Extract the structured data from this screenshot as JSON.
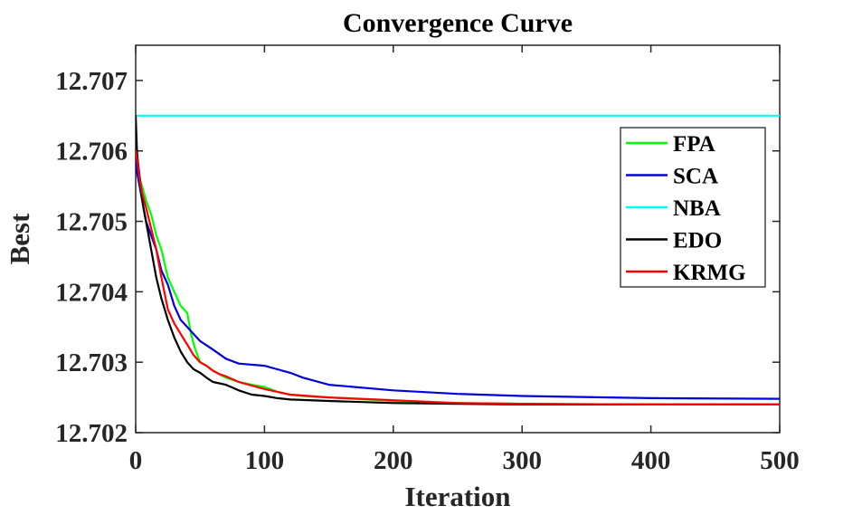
{
  "chart_data": {
    "type": "line",
    "title": "Convergence Curve",
    "xlabel": "Iteration",
    "ylabel": "Best",
    "xlim": [
      0,
      500
    ],
    "ylim": [
      12.702,
      12.7075
    ],
    "xticks": [
      0,
      100,
      200,
      300,
      400,
      500
    ],
    "xtick_labels": [
      "0",
      "100",
      "200",
      "300",
      "400",
      "500"
    ],
    "yticks": [
      12.702,
      12.703,
      12.704,
      12.705,
      12.706,
      12.707
    ],
    "ytick_labels": [
      "12.702",
      "12.703",
      "12.704",
      "12.705",
      "12.706",
      "12.707"
    ],
    "grid": false,
    "legend_position": "upper-right",
    "series": [
      {
        "name": "FPA",
        "color": "#00ff00",
        "x": [
          0,
          1,
          3,
          5,
          8,
          12,
          16,
          20,
          25,
          30,
          35,
          40,
          43,
          46,
          50,
          55,
          60,
          70,
          80,
          90,
          100,
          110,
          120,
          130,
          150,
          200,
          250,
          300,
          400,
          500
        ],
        "y": [
          12.706,
          12.7058,
          12.7056,
          12.7055,
          12.7053,
          12.7051,
          12.7048,
          12.7046,
          12.7042,
          12.704,
          12.7038,
          12.7037,
          12.7034,
          12.7032,
          12.703,
          12.70295,
          12.70288,
          12.70278,
          12.70272,
          12.70268,
          12.70265,
          12.70258,
          12.70254,
          12.70252,
          12.7025,
          12.70245,
          12.70242,
          12.70241,
          12.7024,
          12.7024
        ]
      },
      {
        "name": "SCA",
        "color": "#0000dd",
        "x": [
          0,
          1,
          3,
          5,
          8,
          12,
          16,
          20,
          25,
          30,
          35,
          40,
          45,
          50,
          60,
          70,
          80,
          100,
          110,
          120,
          130,
          150,
          200,
          250,
          300,
          400,
          500
        ],
        "y": [
          12.7059,
          12.7057,
          12.7055,
          12.7053,
          12.705,
          12.7048,
          12.7046,
          12.7043,
          12.7041,
          12.7038,
          12.7036,
          12.7035,
          12.7034,
          12.7033,
          12.70318,
          12.70305,
          12.70298,
          12.70295,
          12.7029,
          12.70285,
          12.70278,
          12.70268,
          12.7026,
          12.70255,
          12.70252,
          12.70249,
          12.70248
        ]
      },
      {
        "name": "NBA",
        "color": "#00ffff",
        "x": [
          0,
          500
        ],
        "y": [
          12.7065,
          12.7065
        ]
      },
      {
        "name": "EDO",
        "color": "#000000",
        "x": [
          0,
          1,
          2,
          4,
          6,
          8,
          12,
          16,
          20,
          25,
          30,
          35,
          40,
          45,
          50,
          55,
          60,
          70,
          80,
          90,
          100,
          110,
          120,
          150,
          200,
          250,
          300,
          400,
          500
        ],
        "y": [
          12.7065,
          12.706,
          12.7058,
          12.7055,
          12.7052,
          12.705,
          12.7046,
          12.7042,
          12.7039,
          12.7036,
          12.70335,
          12.70315,
          12.703,
          12.7029,
          12.70285,
          12.70278,
          12.70272,
          12.70268,
          12.7026,
          12.70254,
          12.70252,
          12.70249,
          12.70247,
          12.70245,
          12.70242,
          12.70241,
          12.7024,
          12.7024,
          12.7024
        ]
      },
      {
        "name": "KRMG",
        "color": "#ff0000",
        "x": [
          0,
          1,
          3,
          5,
          8,
          12,
          16,
          20,
          25,
          30,
          35,
          40,
          45,
          50,
          55,
          60,
          65,
          70,
          80,
          90,
          100,
          110,
          120,
          150,
          200,
          250,
          300,
          400,
          500
        ],
        "y": [
          12.706,
          12.7059,
          12.7056,
          12.7054,
          12.7052,
          12.7049,
          12.7046,
          12.7042,
          12.70375,
          12.70355,
          12.7034,
          12.70325,
          12.7031,
          12.703,
          12.70295,
          12.70288,
          12.70283,
          12.7028,
          12.70272,
          12.70267,
          12.70262,
          12.70258,
          12.70254,
          12.7025,
          12.70246,
          12.70242,
          12.70241,
          12.7024,
          12.7024
        ]
      }
    ]
  }
}
